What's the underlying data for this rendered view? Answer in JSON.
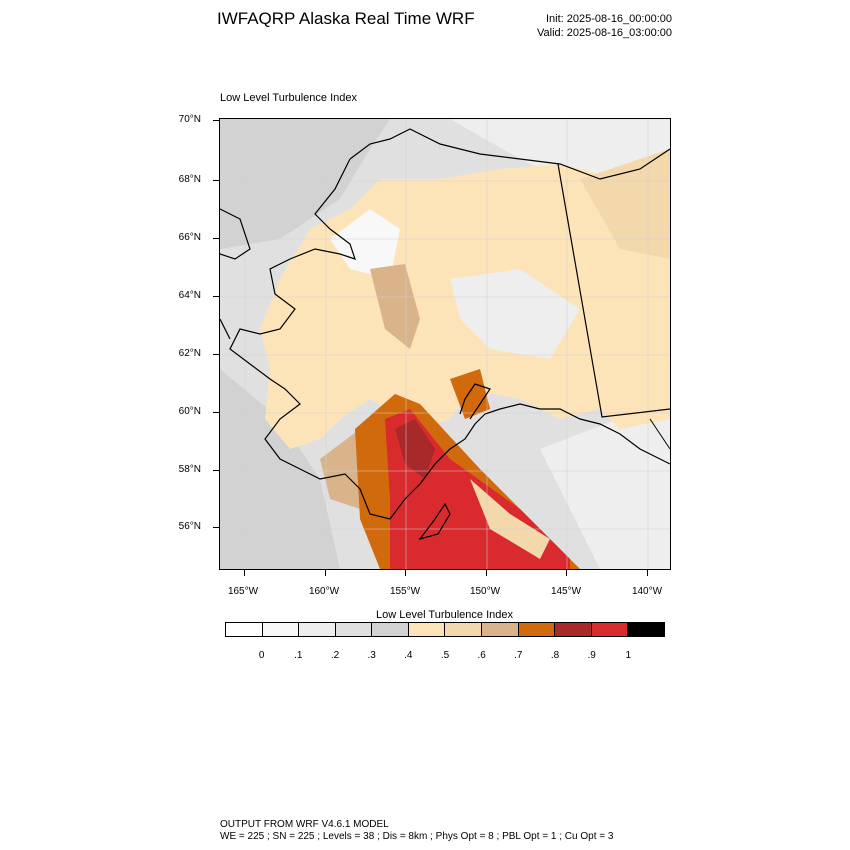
{
  "header": {
    "title": "IWFAQRP Alaska Real Time WRF",
    "init": "Init: 2025-08-16_00:00:00",
    "valid": "Valid: 2025-08-16_03:00:00"
  },
  "plot": {
    "title": "Low Level Turbulence Index",
    "lat_labels": [
      "70°N",
      "68°N",
      "66°N",
      "64°N",
      "62°N",
      "60°N",
      "58°N",
      "56°N"
    ],
    "lon_labels": [
      "165°W",
      "160°W",
      "155°W",
      "150°W",
      "145°W",
      "140°W"
    ]
  },
  "colorbar": {
    "title": "Low Level Turbulence Index",
    "labels": [
      "0",
      ".1",
      ".2",
      ".3",
      ".4",
      ".5",
      ".6",
      ".7",
      ".8",
      ".9",
      "1"
    ],
    "colors": [
      "#ffffff",
      "#f8f8f8",
      "#eeeeee",
      "#e0e0e0",
      "#d2d2d2",
      "#fde4b8",
      "#f3d8ab",
      "#d9b48a",
      "#d06a0d",
      "#a8292a",
      "#d92b2e",
      "#000000"
    ]
  },
  "footer": {
    "line1": "OUTPUT FROM WRF V4.6.1 MODEL",
    "line2": "WE = 225 ; SN = 225 ; Levels = 38 ; Dis = 8km ; Phys Opt = 8 ; PBL Opt = 1 ; Cu Opt = 3"
  }
}
